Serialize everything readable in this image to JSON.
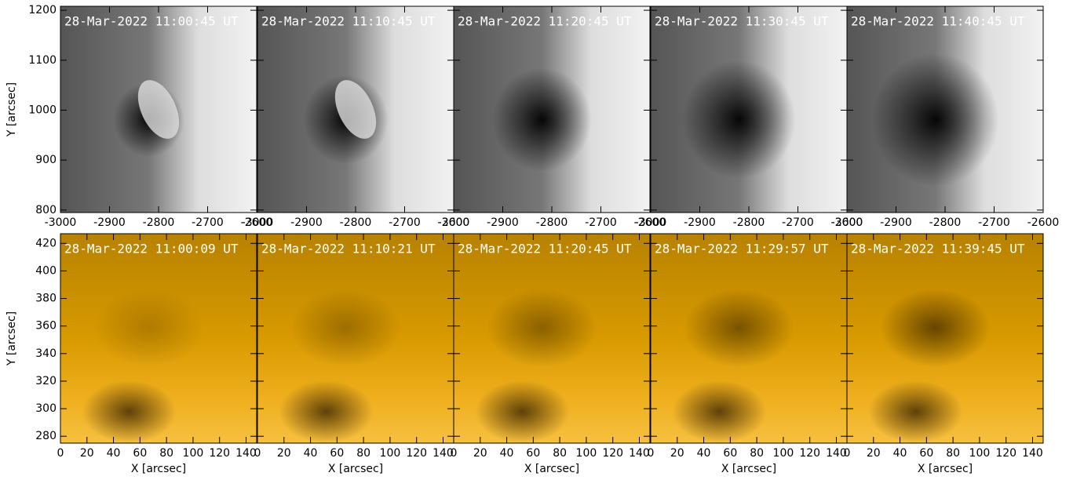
{
  "chart_data": [
    {
      "type": "image",
      "ylabel": "Y [arcsec]",
      "xlim": [
        -3000,
        -2600
      ],
      "xticks": [
        -3000,
        -2900,
        -2800,
        -2700,
        -2600
      ],
      "ylim": [
        795,
        1208
      ],
      "yticks": [
        800,
        900,
        1000,
        1100,
        1200
      ],
      "colormap": "gray",
      "panels": [
        "28-Mar-2022 11:00:45 UT",
        "28-Mar-2022 11:10:45 UT",
        "28-Mar-2022 11:20:45 UT",
        "28-Mar-2022 11:30:45 UT",
        "28-Mar-2022 11:40:45 UT"
      ]
    },
    {
      "type": "image",
      "ylabel": "Y [arcsec]",
      "xlabel": "X [arcsec]",
      "xlim": [
        0,
        148
      ],
      "xticks": [
        0,
        20,
        40,
        60,
        80,
        100,
        120,
        140
      ],
      "ylim": [
        275,
        427
      ],
      "yticks": [
        280,
        300,
        320,
        340,
        360,
        380,
        400,
        420
      ],
      "colormap": "orange",
      "panels": [
        "28-Mar-2022 11:00:09 UT",
        "28-Mar-2022 11:10:21 UT",
        "28-Mar-2022 11:20:45 UT",
        "28-Mar-2022 11:29:57 UT",
        "28-Mar-2022 11:39:45 UT"
      ]
    }
  ]
}
